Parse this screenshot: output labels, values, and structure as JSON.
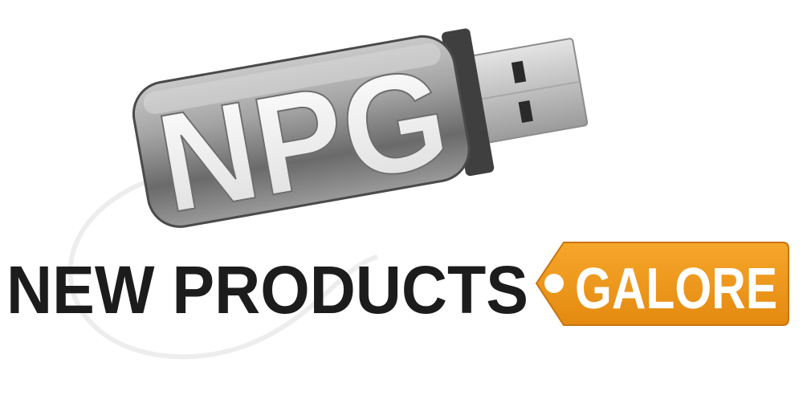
{
  "logo": {
    "monogram": "NPG",
    "tagline_main": "NEW PRODUCTS",
    "tagline_tag": "GALORE",
    "separator": "•"
  },
  "colors": {
    "text_dark": "#1c1c1c",
    "tag_orange": "#f29a1d",
    "tag_orange_dark": "#d67a12",
    "metal_light": "#d9d9d9",
    "metal_dark": "#5a5a5a",
    "plug_light": "#e2e2e2",
    "plug_dark": "#8e8e8e"
  }
}
